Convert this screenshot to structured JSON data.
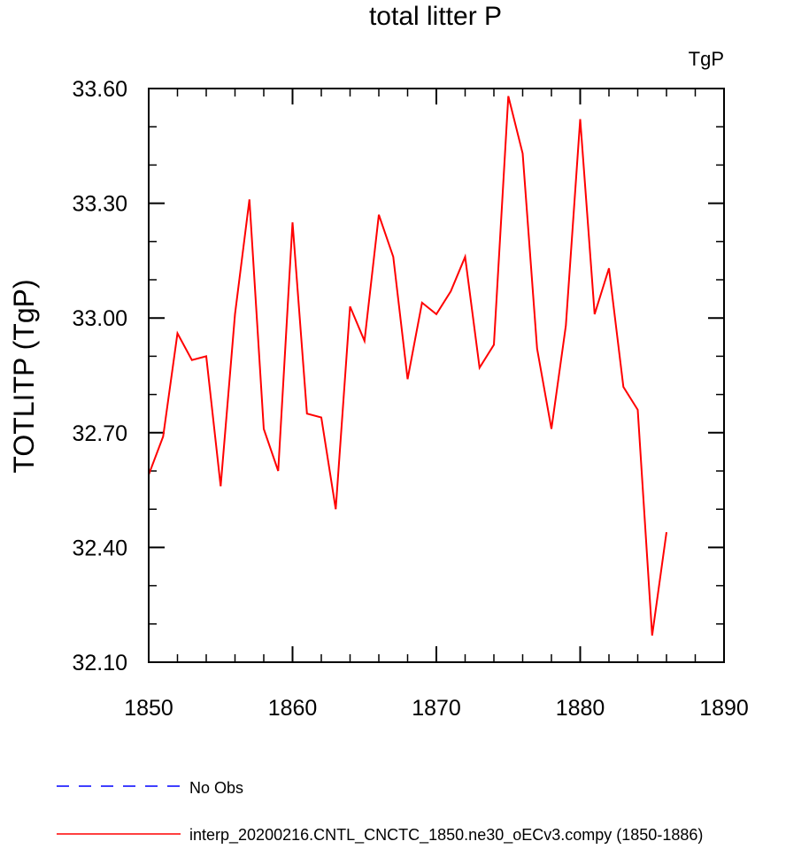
{
  "chart_data": {
    "type": "line",
    "title": "total litter P",
    "units_label": "TgP",
    "xlabel": "",
    "ylabel": "TOTLITP  (TgP)",
    "xlim": [
      1850,
      1890
    ],
    "ylim": [
      32.1,
      33.6
    ],
    "x_ticks": [
      1850,
      1860,
      1870,
      1880,
      1890
    ],
    "x_tick_labels": [
      "1850",
      "1860",
      "1870",
      "1880",
      "1890"
    ],
    "y_ticks": [
      32.1,
      32.4,
      32.7,
      33.0,
      33.3,
      33.6
    ],
    "y_tick_labels": [
      "32.10",
      "32.40",
      "32.70",
      "33.00",
      "33.30",
      "33.60"
    ],
    "grid": false,
    "legend_position": "bottom-left",
    "series": [
      {
        "name": "interp_20200216.CNTL_CNCTC_1850.ne30_oECv3.compy (1850-1886)",
        "color": "#ff0000",
        "dash": "solid",
        "x": [
          1850,
          1851,
          1852,
          1853,
          1854,
          1855,
          1856,
          1857,
          1858,
          1859,
          1860,
          1861,
          1862,
          1863,
          1864,
          1865,
          1866,
          1867,
          1868,
          1869,
          1870,
          1871,
          1872,
          1873,
          1874,
          1875,
          1876,
          1877,
          1878,
          1879,
          1880,
          1881,
          1882,
          1883,
          1884,
          1885,
          1886
        ],
        "y": [
          32.59,
          32.69,
          32.96,
          32.89,
          32.9,
          32.56,
          33.01,
          33.31,
          32.71,
          32.6,
          33.25,
          32.75,
          32.74,
          32.5,
          33.03,
          32.94,
          33.27,
          33.16,
          32.84,
          33.04,
          33.01,
          33.07,
          33.16,
          32.87,
          32.93,
          33.58,
          33.43,
          32.92,
          32.71,
          32.98,
          33.52,
          33.01,
          33.13,
          32.82,
          32.76,
          32.17,
          32.44
        ]
      }
    ],
    "legend": [
      {
        "label": "No Obs",
        "color": "#0000ff",
        "dash": "dashed"
      },
      {
        "label": "interp_20200216.CNTL_CNCTC_1850.ne30_oECv3.compy (1850-1886)",
        "color": "#ff0000",
        "dash": "solid"
      }
    ]
  }
}
